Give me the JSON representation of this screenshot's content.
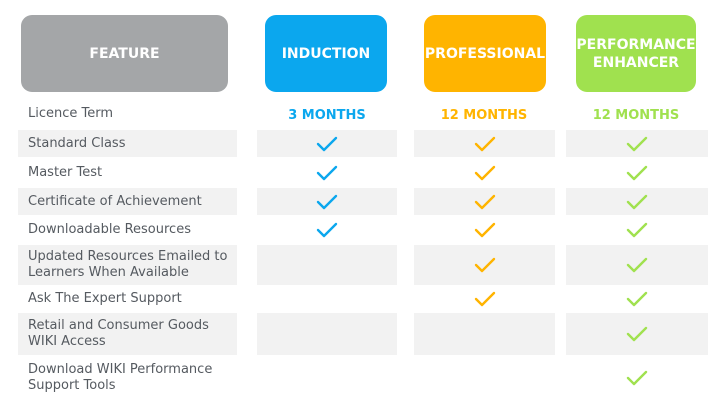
{
  "colors": {
    "feature": "#a4a6a8",
    "induction": "#0ba7ee",
    "professional": "#ffb400",
    "performance": "#a0e14f",
    "stripe": "#f2f2f2",
    "text": "#555a60"
  },
  "headers": {
    "feature": "FEATURE",
    "induction": "INDUCTION",
    "professional": "PROFESSIONAL",
    "performance": "PERFORMANCE ENHANCER"
  },
  "features": [
    "Licence Term",
    "Standard Class",
    "Master Test",
    "Certificate of Achievement",
    "Downloadable Resources",
    "Updated Resources Emailed to Learners When Available",
    "Ask The Expert Support",
    "Retail and Consumer Goods WIKI Access",
    "Download WIKI Performance Support Tools"
  ],
  "licence_terms": {
    "induction": "3 MONTHS",
    "professional": "12 MONTHS",
    "performance": "12 MONTHS"
  },
  "checkmarks": {
    "icon": "checkmark-icon",
    "induction": [
      1,
      2,
      3,
      4
    ],
    "professional": [
      1,
      2,
      3,
      4,
      5,
      6
    ],
    "performance": [
      1,
      2,
      3,
      4,
      5,
      6,
      7,
      8
    ]
  }
}
